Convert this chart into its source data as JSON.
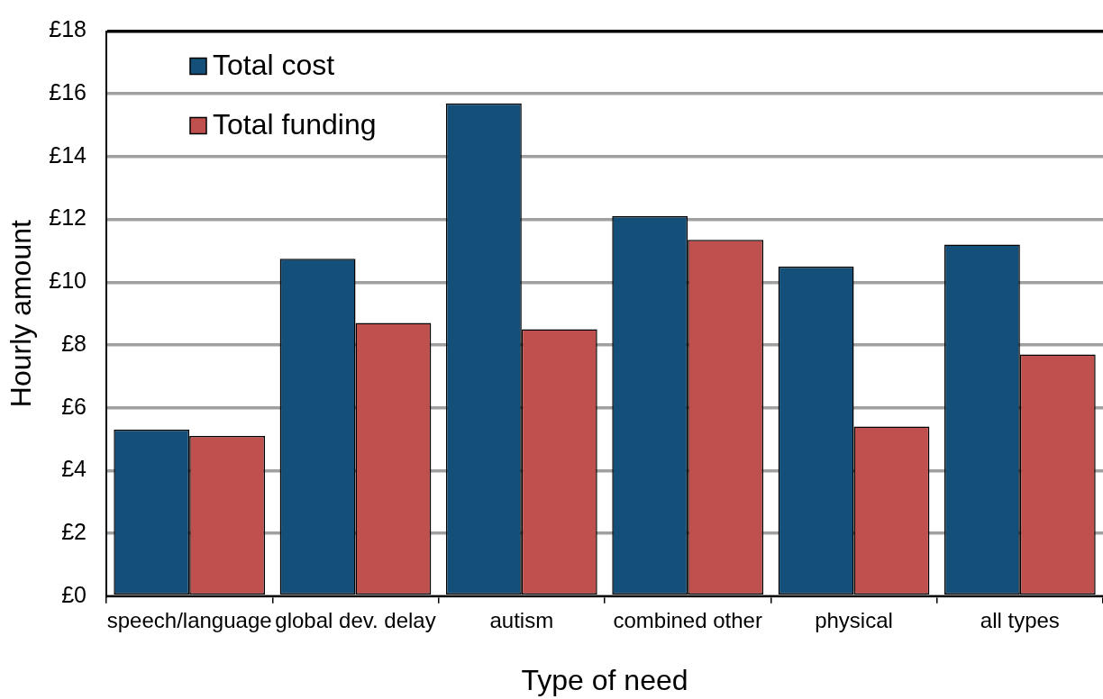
{
  "chart_data": {
    "type": "bar",
    "xlabel": "Type of need",
    "ylabel": "Hourly amount",
    "categories": [
      "speech/language",
      "global dev. delay",
      "autism",
      "combined other",
      "physical",
      "all types"
    ],
    "series": [
      {
        "name": "Total cost",
        "color": "#134f78",
        "values": [
          5.3,
          10.75,
          15.7,
          12.1,
          10.5,
          11.2
        ]
      },
      {
        "name": "Total funding",
        "color": "#c0504d",
        "values": [
          5.1,
          8.7,
          8.5,
          11.35,
          5.4,
          7.7
        ]
      }
    ],
    "ylim": [
      0,
      18
    ],
    "yticks": [
      {
        "value": 0,
        "label": "£0"
      },
      {
        "value": 2,
        "label": "£2"
      },
      {
        "value": 4,
        "label": "£4"
      },
      {
        "value": 6,
        "label": "£6"
      },
      {
        "value": 8,
        "label": "£8"
      },
      {
        "value": 10,
        "label": "£10"
      },
      {
        "value": 12,
        "label": "£12"
      },
      {
        "value": 14,
        "label": "£14"
      },
      {
        "value": 16,
        "label": "£16"
      },
      {
        "value": 18,
        "label": "£18"
      }
    ],
    "grid": "y",
    "legend": "top left"
  }
}
